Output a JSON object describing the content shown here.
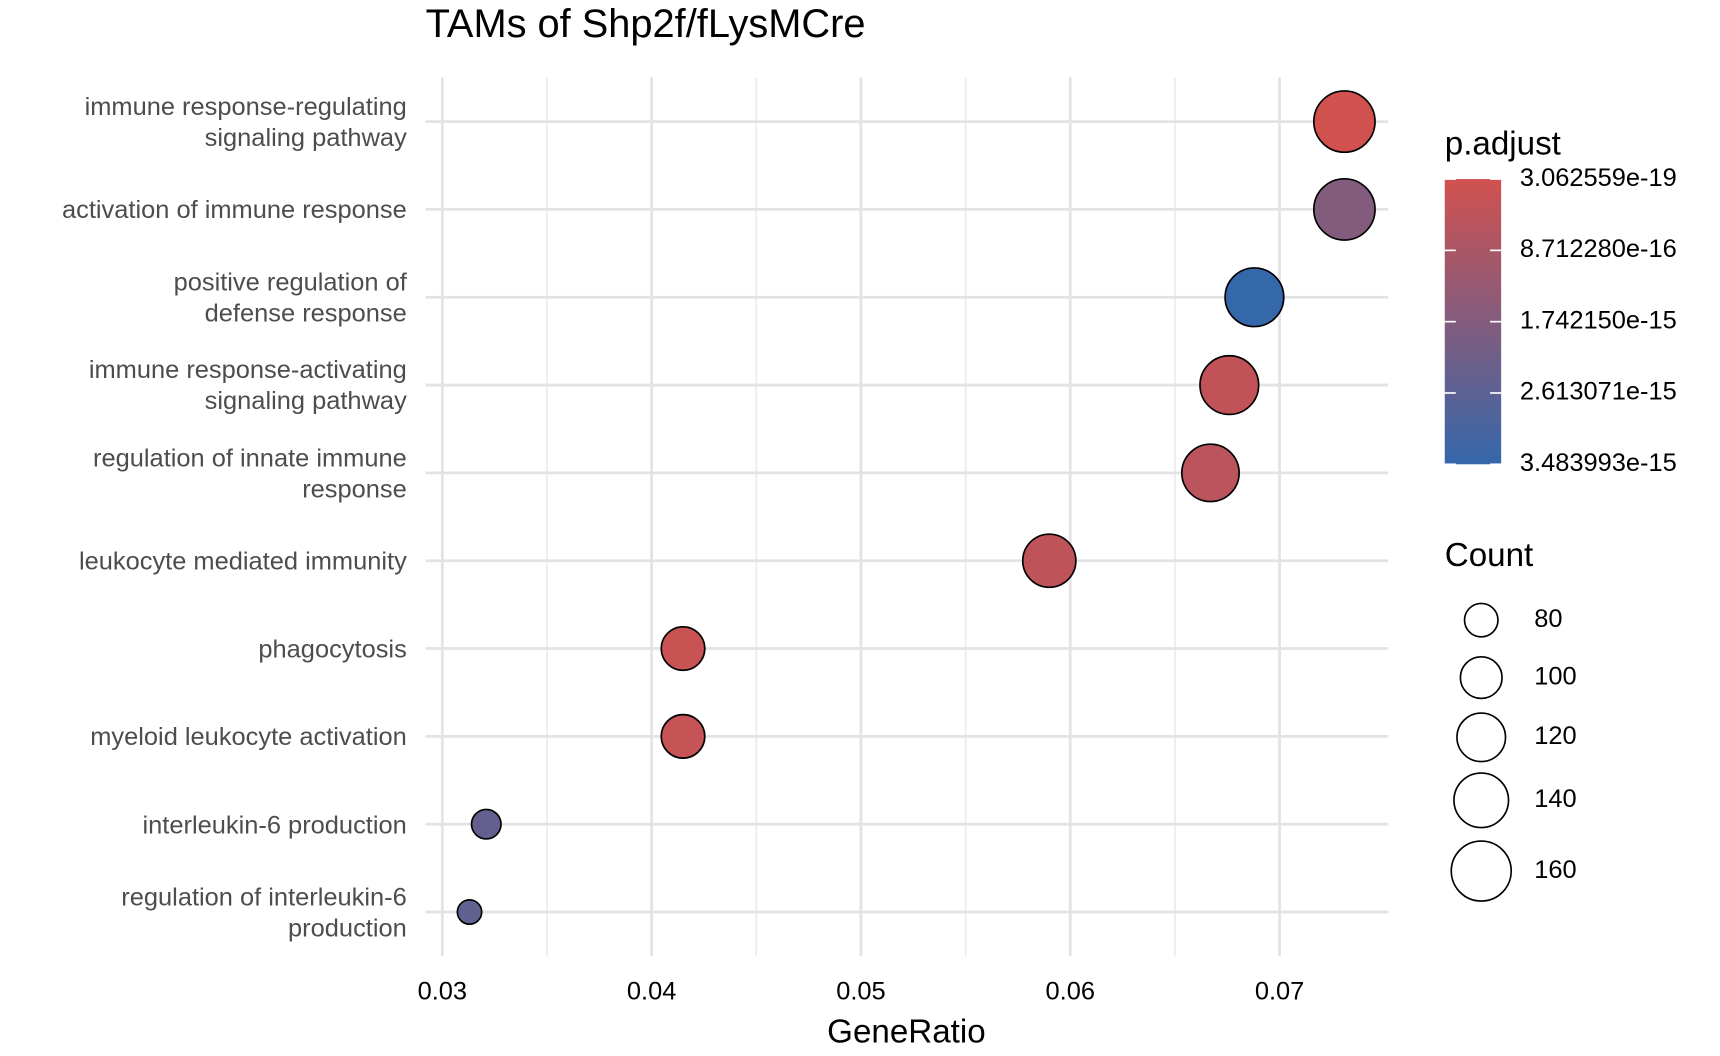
{
  "chart_data": {
    "type": "dot",
    "title": "TAMs of Shp2f/fLysMCre",
    "xlabel": "GeneRatio",
    "categories": [
      "immune response-regulating\nsignaling pathway",
      "activation of immune response",
      "positive regulation of\ndefense response",
      "immune response-activating\nsignaling pathway",
      "regulation of innate immune\nresponse",
      "leukocyte mediated immunity",
      "phagocytosis",
      "myeloid leukocyte activation",
      "interleukin-6 production",
      "regulation of interleukin-6\nproduction"
    ],
    "values": [
      0.0731,
      0.0731,
      0.0688,
      0.0676,
      0.0667,
      0.059,
      0.0415,
      0.0415,
      0.0321,
      0.0313
    ],
    "count": [
      165,
      165,
      155,
      155,
      150,
      135,
      105,
      105,
      72,
      63
    ],
    "p_adjust": [
      3.062559e-19,
      1.74e-15,
      3.483993e-15,
      3.5e-16,
      5.2e-16,
      4.2e-16,
      1.7e-16,
      2.4e-16,
      2.45e-15,
      2.5e-15
    ],
    "xlim": [
      0.0292,
      0.0752
    ],
    "xticks": [
      0.03,
      0.04,
      0.05,
      0.06,
      0.07
    ],
    "grid": true,
    "color_legend_title": "p.adjust",
    "colors": [
      "#d1514f",
      "#3567ab"
    ],
    "color_lim": [
      3.062559e-19,
      3.483993e-15
    ],
    "color_ticks": [
      3.062559e-19,
      {
        "value": 8.71228e-16,
        "label": "8.712280e-16"
      },
      {
        "value": 1.74215e-15,
        "label": "1.742150e-15"
      },
      {
        "value": 2.613071e-15,
        "label": "2.613071e-15"
      },
      3.483993e-15
    ],
    "size_legend_title": "Count",
    "size_ticks": [
      80,
      100,
      120,
      140,
      160
    ]
  }
}
